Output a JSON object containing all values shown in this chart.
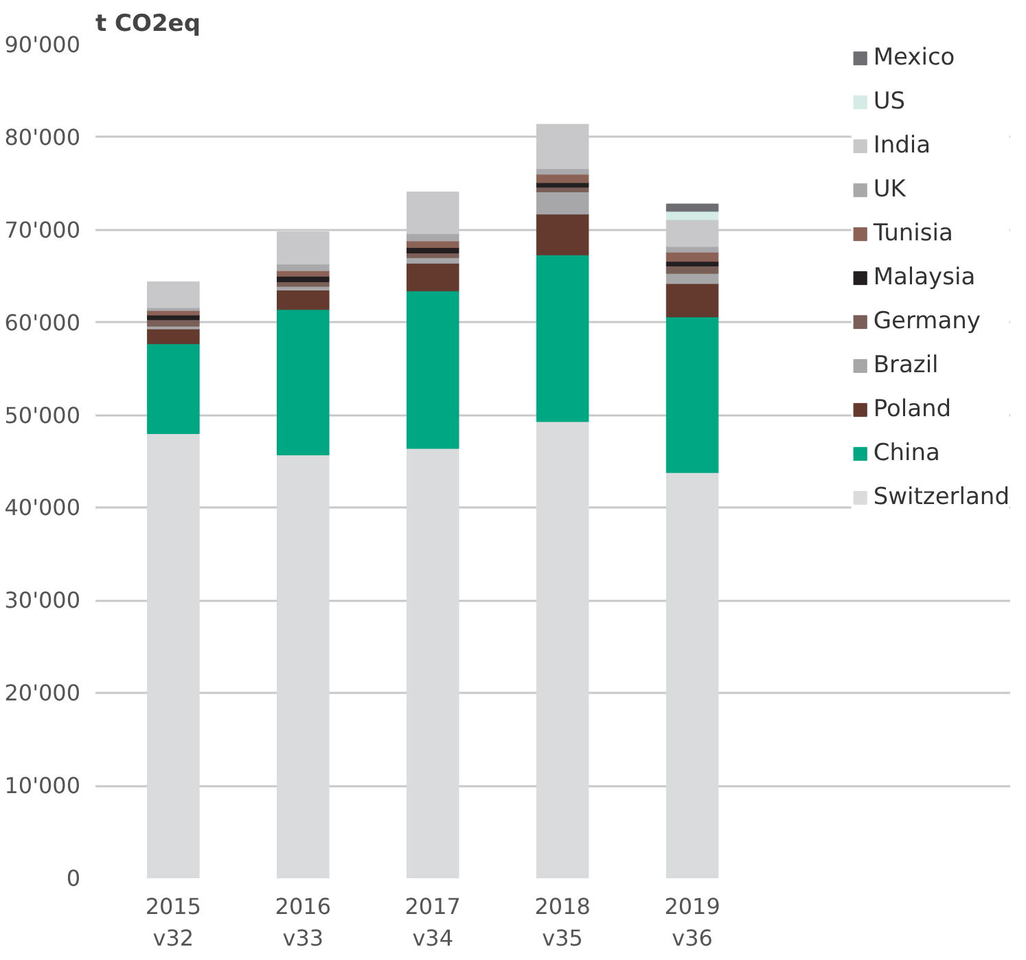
{
  "chart_data": {
    "type": "bar",
    "stacked": true,
    "title": "t CO2eq",
    "categories": [
      "2015\nv32",
      "2016\nv33",
      "2017\nv34",
      "2018\nv35",
      "2019\nv36"
    ],
    "ylim": [
      0,
      90000
    ],
    "yticks": [
      {
        "value": 0,
        "label": "0"
      },
      {
        "value": 10000,
        "label": "10'000"
      },
      {
        "value": 20000,
        "label": "20'000"
      },
      {
        "value": 30000,
        "label": "30'000"
      },
      {
        "value": 40000,
        "label": "40'000"
      },
      {
        "value": 50000,
        "label": "50'000"
      },
      {
        "value": 60000,
        "label": "60'000"
      },
      {
        "value": 70000,
        "label": "70'000"
      },
      {
        "value": 80000,
        "label": "80'000"
      },
      {
        "value": 90000,
        "label": "90'000"
      }
    ],
    "grid": "y",
    "legend": "right",
    "series": [
      {
        "name": "Switzerland",
        "color": "#dadbdd",
        "values": [
          48000,
          45700,
          46400,
          49300,
          43800
        ]
      },
      {
        "name": "China",
        "color": "#00a783",
        "values": [
          9700,
          15700,
          17000,
          18000,
          16800
        ]
      },
      {
        "name": "Poland",
        "color": "#643a2f",
        "values": [
          1600,
          2100,
          3000,
          4400,
          3600
        ]
      },
      {
        "name": "Brazil",
        "color": "#a7a7aa",
        "values": [
          300,
          400,
          600,
          2400,
          1100
        ]
      },
      {
        "name": "Germany",
        "color": "#7a5f58",
        "values": [
          700,
          500,
          500,
          500,
          800
        ]
      },
      {
        "name": "Malaysia",
        "color": "#231f20",
        "values": [
          500,
          600,
          600,
          500,
          500
        ]
      },
      {
        "name": "Tunisia",
        "color": "#8c6257",
        "values": [
          500,
          600,
          700,
          900,
          1000
        ]
      },
      {
        "name": "UK",
        "color": "#a9a9ac",
        "values": [
          300,
          700,
          800,
          600,
          600
        ]
      },
      {
        "name": "India",
        "color": "#c8c8ca",
        "values": [
          2800,
          3500,
          4500,
          4800,
          2900
        ]
      },
      {
        "name": "US",
        "color": "#d4ece5",
        "values": [
          null,
          null,
          null,
          null,
          900
        ]
      },
      {
        "name": "Mexico",
        "color": "#6d6e71",
        "values": [
          null,
          null,
          null,
          null,
          800
        ]
      }
    ]
  }
}
